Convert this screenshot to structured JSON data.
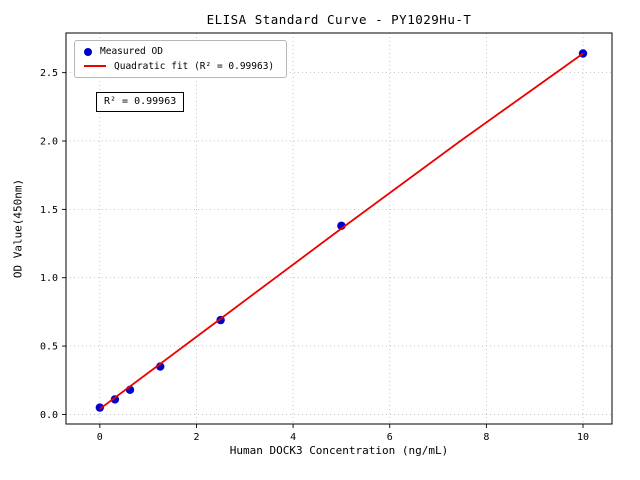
{
  "chart_data": {
    "type": "scatter",
    "title": "ELISA Standard Curve - PY1029Hu-T",
    "xlabel": "Human DOCK3 Concentration (ng/mL)",
    "ylabel": "OD Value(450nm)",
    "xlim": [
      -0.7,
      10.6
    ],
    "ylim": [
      -0.07,
      2.79
    ],
    "x_ticks": [
      0,
      2,
      4,
      6,
      8,
      10
    ],
    "x_tick_labels": [
      "0",
      "2",
      "4",
      "6",
      "8",
      "10"
    ],
    "y_ticks": [
      0.0,
      0.5,
      1.0,
      1.5,
      2.0,
      2.5
    ],
    "y_tick_labels": [
      "0.0",
      "0.5",
      "1.0",
      "1.5",
      "2.0",
      "2.5"
    ],
    "grid": true,
    "legend_position": "upper-left",
    "series": [
      {
        "name": "Measured OD",
        "type": "scatter",
        "color": "#0000cc",
        "x": [
          0,
          0.313,
          0.625,
          1.25,
          2.5,
          5,
          10
        ],
        "y": [
          0.05,
          0.11,
          0.18,
          0.35,
          0.69,
          1.38,
          2.64
        ]
      },
      {
        "name": "Quadratic fit (R² = 0.99963)",
        "type": "line",
        "color": "#ee0000",
        "x": [
          0,
          2.5,
          5,
          7.5,
          10
        ],
        "y": [
          0.04,
          0.7,
          1.36,
          2.01,
          2.64
        ]
      }
    ],
    "annotation": "R² = 0.99963",
    "r_squared": 0.99963
  }
}
